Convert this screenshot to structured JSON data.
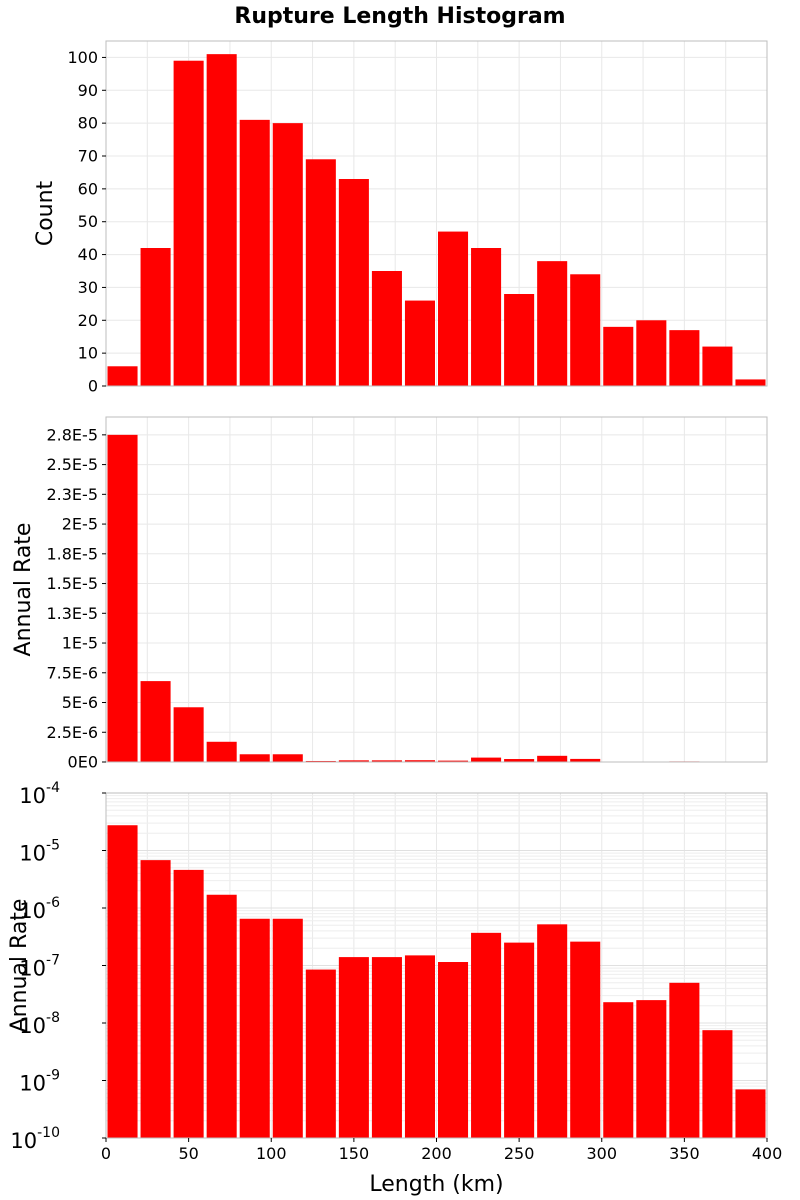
{
  "title": "Rupture Length Histogram",
  "colors": {
    "bar": "#ff0000",
    "grid": "#e8e8e8",
    "frame": "#bdbdbd",
    "background": "#ffffff"
  },
  "chart_data": [
    {
      "type": "bar",
      "ylabel": "Count",
      "xlim": [
        0,
        400
      ],
      "ylim": [
        0,
        105
      ],
      "grid": true,
      "bin_width": 20,
      "x": [
        10,
        30,
        50,
        70,
        90,
        110,
        130,
        150,
        170,
        190,
        210,
        230,
        250,
        270,
        290,
        310,
        330,
        350,
        370,
        390
      ],
      "values": [
        6,
        42,
        99,
        101,
        81,
        80,
        69,
        63,
        35,
        26,
        47,
        42,
        28,
        38,
        34,
        18,
        20,
        17,
        12,
        2
      ],
      "yticks": [
        0,
        10,
        20,
        30,
        40,
        50,
        60,
        70,
        80,
        90,
        100
      ],
      "ytick_labels": [
        "0",
        "10",
        "20",
        "30",
        "40",
        "50",
        "60",
        "70",
        "80",
        "90",
        "100"
      ]
    },
    {
      "type": "bar",
      "ylabel": "Annual Rate",
      "xlim": [
        0,
        400
      ],
      "ylim": [
        0,
        2.9e-05
      ],
      "grid": true,
      "bin_width": 20,
      "x": [
        10,
        30,
        50,
        70,
        90,
        110,
        130,
        150,
        170,
        190,
        210,
        230,
        250,
        270,
        290,
        310,
        330,
        350,
        370,
        390
      ],
      "values": [
        2.75e-05,
        6.8e-06,
        4.6e-06,
        1.7e-06,
        6.5e-07,
        6.5e-07,
        8.5e-08,
        1.4e-07,
        1.4e-07,
        1.5e-07,
        1.15e-07,
        3.7e-07,
        2.5e-07,
        5.2e-07,
        2.6e-07,
        2.3e-08,
        2.5e-08,
        5e-08,
        7.5e-09,
        7e-10
      ],
      "yticks": [
        0,
        2.5e-06,
        5e-06,
        7.5e-06,
        1e-05,
        1.25e-05,
        1.5e-05,
        1.75e-05,
        2e-05,
        2.25e-05,
        2.5e-05,
        2.75e-05
      ],
      "ytick_labels": [
        "0E0",
        "2.5E-6",
        "5E-6",
        "7.5E-6",
        "1E-5",
        "1.3E-5",
        "1.5E-5",
        "1.8E-5",
        "2E-5",
        "2.3E-5",
        "2.5E-5",
        "2.8E-5"
      ]
    },
    {
      "type": "bar",
      "ylabel": "Annual Rate",
      "xlabel": "Length (km)",
      "xlim": [
        0,
        400
      ],
      "yscale": "log",
      "ylim": [
        1e-10,
        0.0001
      ],
      "grid": true,
      "bin_width": 20,
      "x": [
        10,
        30,
        50,
        70,
        90,
        110,
        130,
        150,
        170,
        190,
        210,
        230,
        250,
        270,
        290,
        310,
        330,
        350,
        370,
        390
      ],
      "values": [
        2.75e-05,
        6.8e-06,
        4.6e-06,
        1.7e-06,
        6.5e-07,
        6.5e-07,
        8.5e-08,
        1.4e-07,
        1.4e-07,
        1.5e-07,
        1.15e-07,
        3.7e-07,
        2.5e-07,
        5.2e-07,
        2.6e-07,
        2.3e-08,
        2.5e-08,
        5e-08,
        7.5e-09,
        7e-10
      ],
      "ytick_base": "10",
      "ytick_exponents": [
        "-10",
        "-9",
        "-8",
        "-7",
        "-6",
        "-5",
        "-4"
      ],
      "xticks": [
        0,
        50,
        100,
        150,
        200,
        250,
        300,
        350,
        400
      ],
      "xtick_labels": [
        "0",
        "50",
        "100",
        "150",
        "200",
        "250",
        "300",
        "350",
        "400"
      ]
    }
  ]
}
